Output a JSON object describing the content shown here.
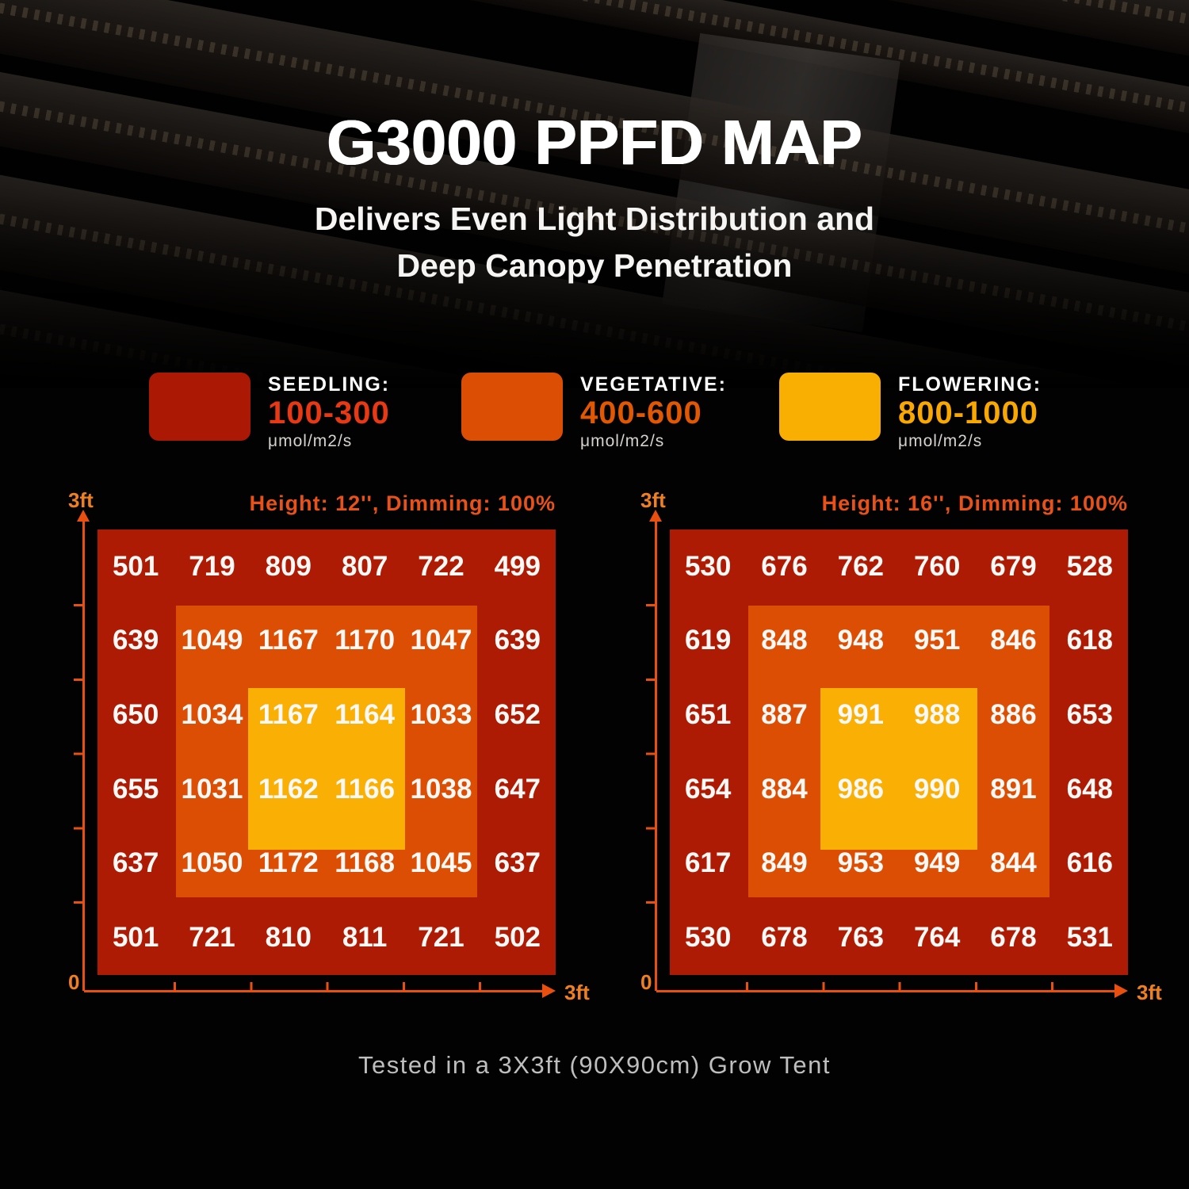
{
  "hero": {
    "title": "G3000 PPFD MAP",
    "subtitle_line1": "Delivers Even Light Distribution and",
    "subtitle_line2": "Deep Canopy Penetration"
  },
  "legend": {
    "items": [
      {
        "id": "seedling",
        "label": "SEEDLING:",
        "range": "100-300",
        "unit": "μmol/m2/s",
        "swatch_color": "#AB1803",
        "range_color": "#E83814"
      },
      {
        "id": "vegetative",
        "label": "VEGETATIVE:",
        "range": "400-600",
        "unit": "μmol/m2/s",
        "swatch_color": "#DC4E03",
        "range_color": "#E25802"
      },
      {
        "id": "flowering",
        "label": "FLOWERING:",
        "range": "800-1000",
        "unit": "μmol/m2/s",
        "swatch_color": "#F9AF01",
        "range_color": "#F9A801"
      }
    ]
  },
  "chart_data": [
    {
      "type": "heatmap",
      "header": "Height: 12'', Dimming: 100%",
      "y_axis_top_label": "3ft",
      "origin_label": "0",
      "x_axis_right_label": "3ft",
      "x_range_ft": [
        0,
        3
      ],
      "y_range_ft": [
        0,
        3
      ],
      "unit": "μmol/m2/s",
      "values": [
        [
          501,
          719,
          809,
          807,
          722,
          499
        ],
        [
          639,
          1049,
          1167,
          1170,
          1047,
          639
        ],
        [
          650,
          1034,
          1167,
          1164,
          1033,
          652
        ],
        [
          655,
          1031,
          1162,
          1166,
          1038,
          647
        ],
        [
          637,
          1050,
          1172,
          1168,
          1045,
          637
        ],
        [
          501,
          721,
          810,
          811,
          721,
          502
        ]
      ],
      "zone_colors": {
        "outer": "#AE1B05",
        "middle": "#DC4E03",
        "inner": "#F9AF04"
      }
    },
    {
      "type": "heatmap",
      "header": "Height: 16'', Dimming: 100%",
      "y_axis_top_label": "3ft",
      "origin_label": "0",
      "x_axis_right_label": "3ft",
      "x_range_ft": [
        0,
        3
      ],
      "y_range_ft": [
        0,
        3
      ],
      "unit": "μmol/m2/s",
      "values": [
        [
          530,
          676,
          762,
          760,
          679,
          528
        ],
        [
          619,
          848,
          948,
          951,
          846,
          618
        ],
        [
          651,
          887,
          991,
          988,
          886,
          653
        ],
        [
          654,
          884,
          986,
          990,
          891,
          648
        ],
        [
          617,
          849,
          953,
          949,
          844,
          616
        ],
        [
          530,
          678,
          763,
          764,
          678,
          531
        ]
      ],
      "zone_colors": {
        "outer": "#AE1B05",
        "middle": "#DC4E03",
        "inner": "#F9AF04"
      }
    }
  ],
  "footer": {
    "caption": "Tested in a 3X3ft (90X90cm) Grow Tent"
  },
  "colors": {
    "background": "#000000",
    "axis_line": "#E9500F",
    "axis_label": "#F0801F",
    "chart_header": "#E85118",
    "value_text": "#FCF8F5",
    "legend_label": "#FDFDFD",
    "legend_unit": "#D6D2CE",
    "caption": "#BEBEBE"
  }
}
